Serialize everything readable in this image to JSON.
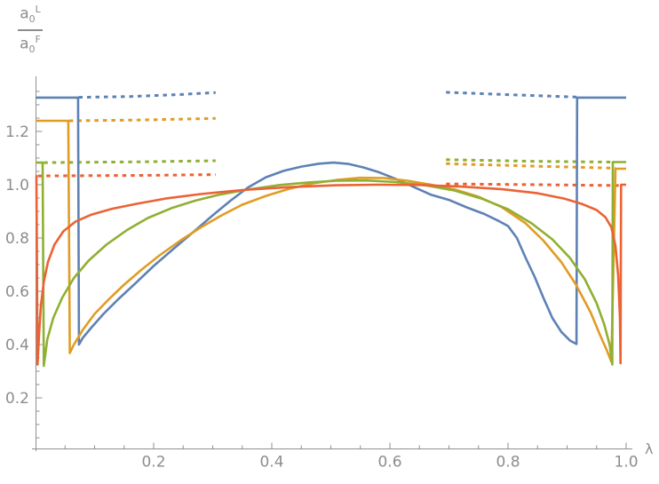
{
  "figure": {
    "x_axis_label": "λ",
    "y_axis_label": {
      "numerator_base": "a",
      "numerator_sub": "0",
      "numerator_sup": "L",
      "denominator_base": "a",
      "denominator_sub": "0",
      "denominator_sup": "F"
    }
  },
  "colors": {
    "blue": "#5e81b5",
    "orange": "#e09c24",
    "green": "#8fb032",
    "red": "#eb6235",
    "axis": "#8f8f8f",
    "tick_label": "#8d8d8d"
  },
  "chart_data": {
    "type": "line",
    "title": "",
    "xlabel": "λ",
    "ylabel": "a0^L / a0^F",
    "x_range": [
      0,
      1.01
    ],
    "y_range": [
      0,
      1.41
    ],
    "grid": false,
    "legend": null,
    "x_ticks": {
      "major": [
        0.2,
        0.4,
        0.6,
        0.8,
        1.0
      ],
      "labels": [
        "0.2",
        "0.4",
        "0.6",
        "0.8",
        "1.0"
      ],
      "minor_step": 0.05
    },
    "y_ticks": {
      "major": [
        0.2,
        0.4,
        0.6,
        0.8,
        1.0,
        1.2
      ],
      "labels": [
        "0.2",
        "0.4",
        "0.6",
        "0.8",
        "1.0",
        "1.2"
      ],
      "minor_step": 0.05,
      "minor_max": 1.36
    },
    "series": [
      {
        "name": "blue",
        "color_key": "blue",
        "left_asymptote": 1.327,
        "right_asymptote": 1.327,
        "solid": [
          [
            0,
            1.327
          ],
          [
            0.072,
            1.327
          ],
          [
            0.0735,
            0.4
          ],
          [
            0.08,
            0.425
          ],
          [
            0.095,
            0.465
          ],
          [
            0.115,
            0.515
          ],
          [
            0.14,
            0.57
          ],
          [
            0.17,
            0.632
          ],
          [
            0.2,
            0.695
          ],
          [
            0.235,
            0.762
          ],
          [
            0.27,
            0.828
          ],
          [
            0.3,
            0.885
          ],
          [
            0.33,
            0.94
          ],
          [
            0.36,
            0.99
          ],
          [
            0.39,
            1.028
          ],
          [
            0.42,
            1.052
          ],
          [
            0.45,
            1.068
          ],
          [
            0.48,
            1.079
          ],
          [
            0.505,
            1.083
          ],
          [
            0.53,
            1.078
          ],
          [
            0.555,
            1.065
          ],
          [
            0.58,
            1.048
          ],
          [
            0.61,
            1.022
          ],
          [
            0.64,
            0.992
          ],
          [
            0.67,
            0.962
          ],
          [
            0.7,
            0.943
          ],
          [
            0.73,
            0.915
          ],
          [
            0.76,
            0.89
          ],
          [
            0.785,
            0.863
          ],
          [
            0.8,
            0.845
          ],
          [
            0.815,
            0.8
          ],
          [
            0.83,
            0.725
          ],
          [
            0.845,
            0.655
          ],
          [
            0.86,
            0.575
          ],
          [
            0.875,
            0.5
          ],
          [
            0.89,
            0.448
          ],
          [
            0.905,
            0.415
          ],
          [
            0.916,
            0.402
          ],
          [
            0.917,
            1.327
          ],
          [
            1.0,
            1.327
          ]
        ],
        "dashed_left": [
          [
            0.073,
            1.328
          ],
          [
            0.16,
            1.331
          ],
          [
            0.24,
            1.338
          ],
          [
            0.305,
            1.346
          ]
        ],
        "dashed_right": [
          [
            0.695,
            1.347
          ],
          [
            0.8,
            1.338
          ],
          [
            0.917,
            1.329
          ]
        ]
      },
      {
        "name": "orange",
        "color_key": "orange",
        "left_asymptote": 1.24,
        "right_asymptote": 1.06,
        "solid": [
          [
            0,
            1.24
          ],
          [
            0.0555,
            1.24
          ],
          [
            0.058,
            0.368
          ],
          [
            0.065,
            0.4
          ],
          [
            0.08,
            0.455
          ],
          [
            0.1,
            0.515
          ],
          [
            0.125,
            0.572
          ],
          [
            0.15,
            0.625
          ],
          [
            0.18,
            0.682
          ],
          [
            0.21,
            0.735
          ],
          [
            0.245,
            0.79
          ],
          [
            0.28,
            0.84
          ],
          [
            0.315,
            0.885
          ],
          [
            0.35,
            0.925
          ],
          [
            0.39,
            0.958
          ],
          [
            0.43,
            0.985
          ],
          [
            0.47,
            1.005
          ],
          [
            0.51,
            1.018
          ],
          [
            0.55,
            1.026
          ],
          [
            0.59,
            1.025
          ],
          [
            0.63,
            1.015
          ],
          [
            0.67,
            1.0
          ],
          [
            0.71,
            0.982
          ],
          [
            0.75,
            0.955
          ],
          [
            0.79,
            0.915
          ],
          [
            0.83,
            0.855
          ],
          [
            0.86,
            0.79
          ],
          [
            0.89,
            0.71
          ],
          [
            0.915,
            0.625
          ],
          [
            0.94,
            0.52
          ],
          [
            0.955,
            0.44
          ],
          [
            0.968,
            0.375
          ],
          [
            0.975,
            0.335
          ],
          [
            0.982,
            1.06
          ],
          [
            1.0,
            1.06
          ]
        ],
        "dashed_left": [
          [
            0.057,
            1.24
          ],
          [
            0.18,
            1.243
          ],
          [
            0.305,
            1.249
          ]
        ],
        "dashed_right": [
          [
            0.695,
            1.079
          ],
          [
            0.84,
            1.07
          ],
          [
            0.982,
            1.062
          ]
        ]
      },
      {
        "name": "green",
        "color_key": "green",
        "left_asymptote": 1.083,
        "right_asymptote": 1.085,
        "solid": [
          [
            0,
            1.083
          ],
          [
            0.012,
            1.083
          ],
          [
            0.014,
            0.32
          ],
          [
            0.02,
            0.42
          ],
          [
            0.03,
            0.5
          ],
          [
            0.045,
            0.575
          ],
          [
            0.065,
            0.65
          ],
          [
            0.09,
            0.715
          ],
          [
            0.12,
            0.775
          ],
          [
            0.155,
            0.83
          ],
          [
            0.19,
            0.875
          ],
          [
            0.23,
            0.912
          ],
          [
            0.27,
            0.94
          ],
          [
            0.31,
            0.962
          ],
          [
            0.36,
            0.982
          ],
          [
            0.41,
            0.998
          ],
          [
            0.46,
            1.008
          ],
          [
            0.51,
            1.015
          ],
          [
            0.56,
            1.016
          ],
          [
            0.61,
            1.01
          ],
          [
            0.66,
            0.998
          ],
          [
            0.71,
            0.978
          ],
          [
            0.755,
            0.948
          ],
          [
            0.8,
            0.908
          ],
          [
            0.84,
            0.855
          ],
          [
            0.875,
            0.795
          ],
          [
            0.905,
            0.725
          ],
          [
            0.93,
            0.645
          ],
          [
            0.95,
            0.555
          ],
          [
            0.963,
            0.475
          ],
          [
            0.972,
            0.4
          ],
          [
            0.9765,
            0.325
          ],
          [
            0.9775,
            1.085
          ],
          [
            1.0,
            1.085
          ]
        ],
        "dashed_left": [
          [
            0.014,
            1.083
          ],
          [
            0.18,
            1.086
          ],
          [
            0.305,
            1.09
          ]
        ],
        "dashed_right": [
          [
            0.695,
            1.094
          ],
          [
            0.84,
            1.088
          ],
          [
            0.977,
            1.085
          ]
        ]
      },
      {
        "name": "red",
        "color_key": "red",
        "left_asymptote": 1.033,
        "right_asymptote": 1.0,
        "solid": [
          [
            0,
            1.033
          ],
          [
            0.0015,
            1.033
          ],
          [
            0.0035,
            0.325
          ],
          [
            0.006,
            0.44
          ],
          [
            0.009,
            0.545
          ],
          [
            0.014,
            0.635
          ],
          [
            0.021,
            0.71
          ],
          [
            0.032,
            0.775
          ],
          [
            0.047,
            0.825
          ],
          [
            0.068,
            0.862
          ],
          [
            0.095,
            0.888
          ],
          [
            0.13,
            0.91
          ],
          [
            0.17,
            0.928
          ],
          [
            0.22,
            0.948
          ],
          [
            0.28,
            0.965
          ],
          [
            0.35,
            0.98
          ],
          [
            0.43,
            0.991
          ],
          [
            0.51,
            0.998
          ],
          [
            0.58,
            1.0
          ],
          [
            0.65,
            0.999
          ],
          [
            0.72,
            0.993
          ],
          [
            0.79,
            0.983
          ],
          [
            0.85,
            0.968
          ],
          [
            0.895,
            0.948
          ],
          [
            0.925,
            0.928
          ],
          [
            0.95,
            0.905
          ],
          [
            0.965,
            0.878
          ],
          [
            0.975,
            0.84
          ],
          [
            0.982,
            0.77
          ],
          [
            0.9865,
            0.66
          ],
          [
            0.9895,
            0.5
          ],
          [
            0.9905,
            0.33
          ],
          [
            0.9915,
            1.0
          ],
          [
            1.0,
            1.0
          ]
        ],
        "dashed_left": [
          [
            0.004,
            1.033
          ],
          [
            0.18,
            1.035
          ],
          [
            0.305,
            1.038
          ]
        ],
        "dashed_right": [
          [
            0.695,
            1.003
          ],
          [
            0.85,
            1.0
          ],
          [
            0.9905,
            0.997
          ]
        ]
      }
    ]
  }
}
